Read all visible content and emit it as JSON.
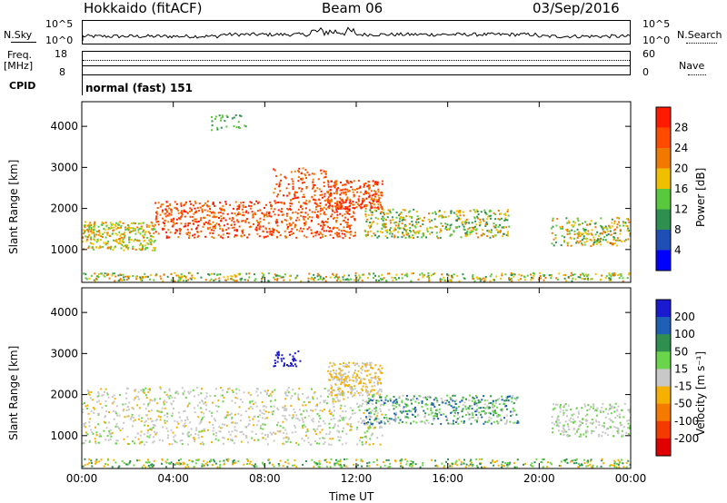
{
  "header": {
    "radar": "Hokkaido (fitACF)",
    "beam": "Beam 06",
    "date": "03/Sep/2016"
  },
  "panels": {
    "nsky_label": "N.Sky",
    "nsearch_label": "N.Search",
    "freq_label_top": "Freq.",
    "freq_label_unit": "[MHz]",
    "nave_label": "Nave",
    "cpid_label": "CPID",
    "nsky_ticks": [
      "10^5",
      "10^0"
    ],
    "nsearch_ticks": [
      "10^5",
      "10^0"
    ],
    "freq_ticks": [
      "18",
      "8"
    ],
    "nave_ticks": [
      "60",
      "0"
    ],
    "cpid_text": "normal (fast) 151"
  },
  "chart_data": [
    {
      "type": "heatmap",
      "name_param": "Power",
      "ylabel": "Slant Range [km]",
      "xlabel": "",
      "ylim": [
        200,
        4600
      ],
      "yticks": [
        1000,
        2000,
        3000,
        4000
      ],
      "xticks": [
        "00:00",
        "04:00",
        "08:00",
        "12:00",
        "16:00",
        "20:00",
        "00:00"
      ],
      "colorbar": {
        "label": "Power [dB]",
        "ticks": [
          "4",
          "8",
          "12",
          "16",
          "20",
          "24",
          "28"
        ],
        "colors": [
          "#0000ff",
          "#1f4fb5",
          "#2f8f4f",
          "#5ac83c",
          "#f0c000",
          "#f07a00",
          "#ff4a00",
          "#ff1a00"
        ]
      }
    },
    {
      "type": "heatmap",
      "name_param": "Velocity",
      "ylabel": "Slant Range [km]",
      "xlabel": "Time UT",
      "ylim": [
        200,
        4600
      ],
      "yticks": [
        1000,
        2000,
        3000,
        4000
      ],
      "xticks": [
        "00:00",
        "04:00",
        "08:00",
        "12:00",
        "16:00",
        "20:00",
        "00:00"
      ],
      "colorbar": {
        "label": "Velocity [m s⁻¹]",
        "ticks": [
          "200",
          "100",
          "50",
          "15",
          "-15",
          "-50",
          "-100",
          "-200"
        ],
        "colors": [
          "#1a1ad0",
          "#1f5fb5",
          "#2f8f4f",
          "#6ad44a",
          "#c8c8c8",
          "#f5b000",
          "#f57a00",
          "#f53a00",
          "#e00000"
        ]
      }
    }
  ]
}
